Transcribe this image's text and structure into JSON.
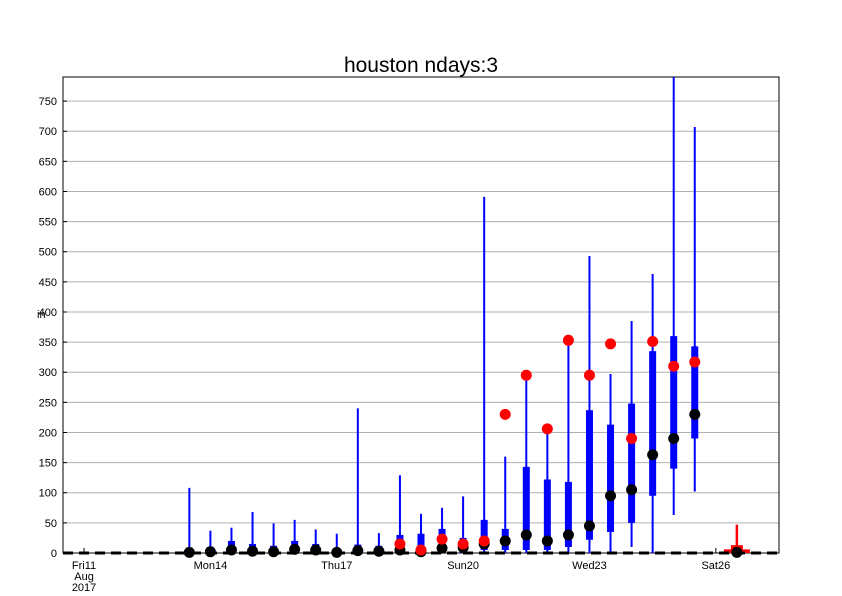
{
  "chart_data": {
    "type": "box",
    "title": "houston ndays:3",
    "ylabel": "in",
    "ylim": [
      0,
      790
    ],
    "yticks": [
      0,
      50,
      100,
      150,
      200,
      250,
      300,
      350,
      400,
      450,
      500,
      550,
      600,
      650,
      700,
      750
    ],
    "ytick_labels": [
      "0",
      "50",
      "100",
      "150",
      "200",
      "250",
      "300",
      "350",
      "400",
      "450",
      "500",
      "550",
      "600",
      "650",
      "700",
      "750"
    ],
    "grid": true,
    "xlim": [
      0,
      34
    ],
    "xticks": [
      {
        "x": 1,
        "lines": [
          "Fri11",
          "Aug",
          "2017"
        ],
        "color": "#000000"
      },
      {
        "x": 7,
        "lines": [
          "Mon14"
        ],
        "color": "#000000"
      },
      {
        "x": 13,
        "lines": [
          "Thu17"
        ],
        "color": "#000000"
      },
      {
        "x": 19,
        "lines": [
          "Sun20"
        ],
        "color": "#ff0000"
      },
      {
        "x": 25,
        "lines": [
          "Wed23"
        ],
        "color": "#000000"
      },
      {
        "x": 31,
        "lines": [
          "Sat26"
        ],
        "color": "#000000"
      }
    ],
    "colors": {
      "whisker": "#0000ff",
      "box": "#0000ff",
      "median": "#000000",
      "observed": "#ff0000",
      "current": "#ff0000"
    },
    "series": [
      {
        "x": 6,
        "whisker": [
          0,
          108
        ],
        "box": [
          0,
          3
        ],
        "median": 1
      },
      {
        "x": 7,
        "whisker": [
          0,
          37
        ],
        "box": [
          0,
          10
        ],
        "median": 2
      },
      {
        "x": 8,
        "whisker": [
          0,
          42
        ],
        "box": [
          0,
          20
        ],
        "median": 5
      },
      {
        "x": 9,
        "whisker": [
          0,
          68
        ],
        "box": [
          0,
          15
        ],
        "median": 3
      },
      {
        "x": 10,
        "whisker": [
          0,
          49
        ],
        "box": [
          0,
          12
        ],
        "median": 2
      },
      {
        "x": 11,
        "whisker": [
          0,
          55
        ],
        "box": [
          0,
          20
        ],
        "median": 6
      },
      {
        "x": 12,
        "whisker": [
          0,
          39
        ],
        "box": [
          0,
          15
        ],
        "median": 5
      },
      {
        "x": 13,
        "whisker": [
          0,
          32
        ],
        "box": [
          0,
          8
        ],
        "median": 1
      },
      {
        "x": 14,
        "whisker": [
          0,
          240
        ],
        "box": [
          0,
          14
        ],
        "median": 4
      },
      {
        "x": 15,
        "whisker": [
          0,
          33
        ],
        "box": [
          0,
          12
        ],
        "median": 3
      },
      {
        "x": 16,
        "whisker": [
          0,
          129
        ],
        "box": [
          0,
          30
        ],
        "median": 5,
        "observed": 15
      },
      {
        "x": 17,
        "whisker": [
          0,
          65
        ],
        "box": [
          0,
          32
        ],
        "median": 2,
        "observed": 5
      },
      {
        "x": 18,
        "whisker": [
          0,
          75
        ],
        "box": [
          0,
          40
        ],
        "median": 8,
        "observed": 23
      },
      {
        "x": 19,
        "whisker": [
          0,
          94
        ],
        "box": [
          0,
          25
        ],
        "median": 9,
        "observed": 15
      },
      {
        "x": 20,
        "whisker": [
          0,
          591
        ],
        "box": [
          5,
          55
        ],
        "median": 15,
        "observed": 20
      },
      {
        "x": 21,
        "whisker": [
          0,
          160
        ],
        "box": [
          5,
          40
        ],
        "median": 20,
        "observed": 230
      },
      {
        "x": 22,
        "whisker": [
          0,
          290
        ],
        "box": [
          5,
          143
        ],
        "median": 30,
        "observed": 295
      },
      {
        "x": 23,
        "whisker": [
          0,
          200
        ],
        "box": [
          5,
          122
        ],
        "median": 20,
        "observed": 206
      },
      {
        "x": 24,
        "whisker": [
          0,
          350
        ],
        "box": [
          10,
          118
        ],
        "median": 30,
        "observed": 353
      },
      {
        "x": 25,
        "whisker": [
          0,
          493
        ],
        "box": [
          22,
          237
        ],
        "median": 45,
        "observed": 295
      },
      {
        "x": 26,
        "whisker": [
          0,
          297
        ],
        "box": [
          35,
          213
        ],
        "median": 95,
        "observed": 347
      },
      {
        "x": 27,
        "whisker": [
          10,
          385
        ],
        "box": [
          50,
          248
        ],
        "median": 105,
        "observed": 190
      },
      {
        "x": 28,
        "whisker": [
          0,
          463
        ],
        "box": [
          95,
          335
        ],
        "median": 163,
        "observed": 351
      },
      {
        "x": 29,
        "whisker": [
          63,
          790
        ],
        "box": [
          140,
          360
        ],
        "median": 190,
        "observed": 310
      },
      {
        "x": 30,
        "whisker": [
          102,
          707
        ],
        "box": [
          190,
          343
        ],
        "median": 230,
        "observed": 317
      }
    ],
    "current": {
      "x": 32,
      "whisker": [
        0,
        47
      ],
      "box": [
        0,
        13
      ],
      "median": 1
    }
  }
}
